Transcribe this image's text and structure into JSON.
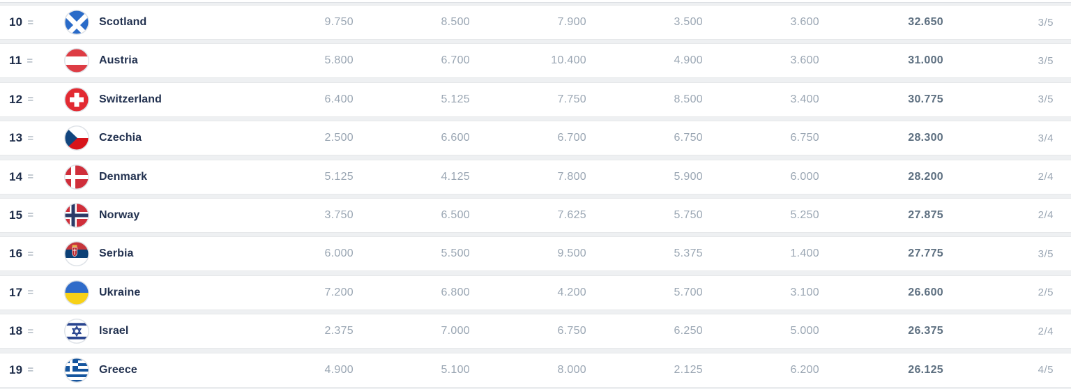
{
  "table": {
    "rows": [
      {
        "rank": "10",
        "tie": "=",
        "flag": "scotland",
        "country": "Scotland",
        "scores": [
          "9.750",
          "8.500",
          "7.900",
          "3.500",
          "3.600"
        ],
        "total": "32.650",
        "fraction": "3/5"
      },
      {
        "rank": "11",
        "tie": "=",
        "flag": "austria",
        "country": "Austria",
        "scores": [
          "5.800",
          "6.700",
          "10.400",
          "4.900",
          "3.600"
        ],
        "total": "31.000",
        "fraction": "3/5"
      },
      {
        "rank": "12",
        "tie": "=",
        "flag": "switzerland",
        "country": "Switzerland",
        "scores": [
          "6.400",
          "5.125",
          "7.750",
          "8.500",
          "3.400"
        ],
        "total": "30.775",
        "fraction": "3/5"
      },
      {
        "rank": "13",
        "tie": "=",
        "flag": "czechia",
        "country": "Czechia",
        "scores": [
          "2.500",
          "6.600",
          "6.700",
          "6.750",
          "6.750"
        ],
        "total": "28.300",
        "fraction": "3/4"
      },
      {
        "rank": "14",
        "tie": "=",
        "flag": "denmark",
        "country": "Denmark",
        "scores": [
          "5.125",
          "4.125",
          "7.800",
          "5.900",
          "6.000"
        ],
        "total": "28.200",
        "fraction": "2/4"
      },
      {
        "rank": "15",
        "tie": "=",
        "flag": "norway",
        "country": "Norway",
        "scores": [
          "3.750",
          "6.500",
          "7.625",
          "5.750",
          "5.250"
        ],
        "total": "27.875",
        "fraction": "2/4"
      },
      {
        "rank": "16",
        "tie": "=",
        "flag": "serbia",
        "country": "Serbia",
        "scores": [
          "6.000",
          "5.500",
          "9.500",
          "5.375",
          "1.400"
        ],
        "total": "27.775",
        "fraction": "3/5"
      },
      {
        "rank": "17",
        "tie": "=",
        "flag": "ukraine",
        "country": "Ukraine",
        "scores": [
          "7.200",
          "6.800",
          "4.200",
          "5.700",
          "3.100"
        ],
        "total": "26.600",
        "fraction": "2/5"
      },
      {
        "rank": "18",
        "tie": "=",
        "flag": "israel",
        "country": "Israel",
        "scores": [
          "2.375",
          "7.000",
          "6.750",
          "6.250",
          "5.000"
        ],
        "total": "26.375",
        "fraction": "2/4"
      },
      {
        "rank": "19",
        "tie": "=",
        "flag": "greece",
        "country": "Greece",
        "scores": [
          "4.900",
          "5.100",
          "8.000",
          "2.125",
          "6.200"
        ],
        "total": "26.125",
        "fraction": "4/5"
      }
    ]
  },
  "colors": {
    "row_background": "#ffffff",
    "page_background": "#eef0f2",
    "rank_text": "#1d2c49",
    "country_text": "#22314f",
    "score_text": "#9aa6b3",
    "total_text": "#5d6f80",
    "tie_text": "#98a4b1"
  }
}
